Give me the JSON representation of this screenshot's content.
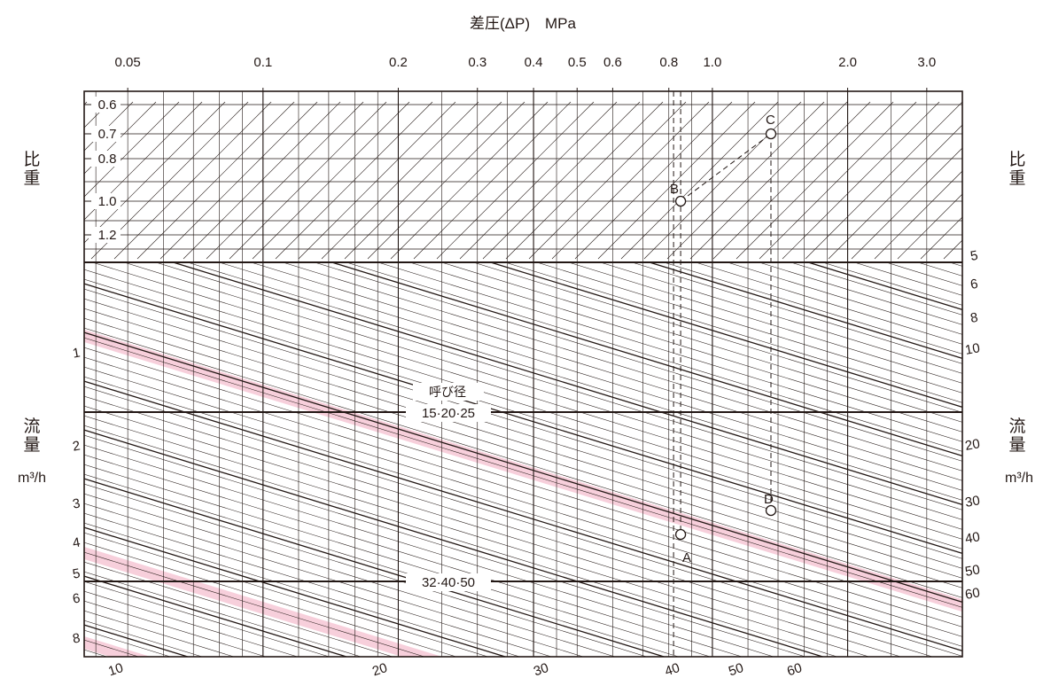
{
  "chart_data": {
    "type": "nomogram",
    "title": "差圧(ΔP)　MPa",
    "top_axis": {
      "label": "差圧(ΔP)　MPa",
      "scale": "log",
      "range": [
        0.04,
        3.6
      ],
      "ticks": [
        {
          "v": 0.05,
          "label": "0.05"
        },
        {
          "v": 0.1,
          "label": "0.1"
        },
        {
          "v": 0.2,
          "label": "0.2"
        },
        {
          "v": 0.3,
          "label": "0.3"
        },
        {
          "v": 0.4,
          "label": "0.4"
        },
        {
          "v": 0.5,
          "label": "0.5"
        },
        {
          "v": 0.6,
          "label": "0.6"
        },
        {
          "v": 0.8,
          "label": "0.8"
        },
        {
          "v": 1.0,
          "label": "1.0"
        },
        {
          "v": 2.0,
          "label": "2.0"
        },
        {
          "v": 3.0,
          "label": "3.0"
        }
      ]
    },
    "specific_gravity": {
      "label_left": "比\n重",
      "label_right": "比\n重",
      "ticks": [
        "0.6",
        "0.7",
        "0.8",
        "1.0",
        "1.2"
      ]
    },
    "flow": {
      "label_left": "流\n量",
      "label_right": "流\n量",
      "unit": "m³/h",
      "left_ticks": [
        "1",
        "2",
        "3",
        "4",
        "5",
        "6",
        "8"
      ],
      "right_ticks": [
        "5",
        "6",
        "8",
        "10",
        "20",
        "30",
        "40",
        "50",
        "60"
      ],
      "bottom_ticks": [
        "10",
        "20",
        "30",
        "40",
        "50",
        "60"
      ]
    },
    "nominal_size": {
      "title": "呼び径",
      "bands": [
        "15·20·25",
        "32·40·50"
      ]
    },
    "example_points": [
      {
        "name": "A",
        "dp": 0.85
      },
      {
        "name": "B",
        "dp": 0.85,
        "sg": 1.0
      },
      {
        "name": "C",
        "dp": 1.35,
        "sg": 0.7
      },
      {
        "name": "D",
        "dp": 1.35
      }
    ],
    "grid": true
  },
  "colors": {
    "line": "#231815",
    "highlight": "#f7cfdb",
    "background": "#ffffff"
  }
}
